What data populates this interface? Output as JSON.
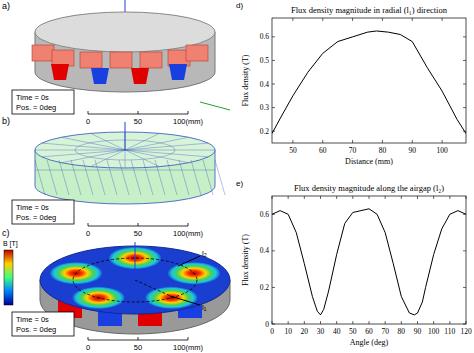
{
  "chart_data": [
    {
      "type": "line",
      "title": "Flux density magnitude in radial (l₁) direction",
      "x_label": "Distance (mm)",
      "y_label": "Flux density (T)",
      "panel": "d)",
      "x": [
        43,
        46,
        50,
        55,
        60,
        65,
        70,
        75,
        78,
        82,
        86,
        90,
        95,
        100,
        105,
        108
      ],
      "values": [
        0.19,
        0.26,
        0.35,
        0.45,
        0.53,
        0.58,
        0.6,
        0.62,
        0.625,
        0.62,
        0.61,
        0.58,
        0.47,
        0.37,
        0.25,
        0.19
      ],
      "color": "#000000",
      "xlim": [
        43,
        108
      ],
      "xticks": [
        50,
        60,
        70,
        80,
        90,
        100
      ],
      "ylim": [
        0.15,
        0.68
      ],
      "yticks": [
        0.2,
        0.3,
        0.4,
        0.5,
        0.6
      ],
      "grid": false
    },
    {
      "type": "line",
      "title": "Flux density magnitude along the airgap (l₂)",
      "x_label": "Angle (deg)",
      "y_label": "Flux density (T)",
      "panel": "e)",
      "x": [
        0,
        5,
        10,
        15,
        20,
        25,
        28,
        30,
        32,
        35,
        40,
        45,
        50,
        55,
        60,
        65,
        70,
        75,
        80,
        85,
        88,
        90,
        93,
        95,
        100,
        105,
        110,
        115,
        120
      ],
      "values": [
        0.6,
        0.62,
        0.6,
        0.5,
        0.33,
        0.15,
        0.07,
        0.05,
        0.08,
        0.18,
        0.38,
        0.55,
        0.61,
        0.62,
        0.63,
        0.6,
        0.5,
        0.33,
        0.15,
        0.06,
        0.05,
        0.06,
        0.12,
        0.2,
        0.38,
        0.52,
        0.6,
        0.62,
        0.6
      ],
      "color": "#000000",
      "xlim": [
        0,
        120
      ],
      "xticks": [
        0,
        10,
        20,
        30,
        40,
        50,
        60,
        70,
        80,
        90,
        100,
        110,
        120
      ],
      "ylim": [
        0,
        0.7
      ],
      "yticks": [
        0,
        0.2,
        0.4,
        0.6
      ],
      "grid": false
    }
  ],
  "figure": {
    "panels": [
      {
        "label": "a)",
        "time": "Time = 0s",
        "pos": "Pos. = 0deg",
        "scale": [
          "0",
          "50",
          "100(mm)"
        ]
      },
      {
        "label": "b)",
        "time": "Time = 0s",
        "pos": "Pos. = 0deg",
        "scale": [
          "0",
          "50",
          "100(mm)"
        ]
      },
      {
        "label": "c)",
        "time": "Time = 0s",
        "pos": "Pos. = 0deg",
        "scale": [
          "0",
          "50",
          "100(mm)"
        ]
      }
    ],
    "colorbar_title": "B [T]",
    "paths": [
      "l₂",
      "l₁"
    ]
  }
}
